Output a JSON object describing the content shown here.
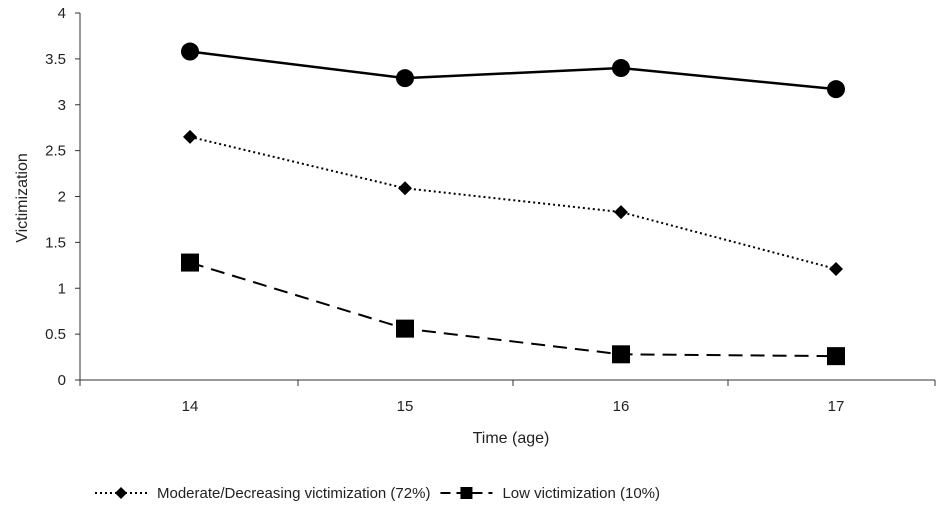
{
  "chart_data": {
    "type": "line",
    "title": "",
    "xlabel": "Time (age)",
    "ylabel": "Victimization",
    "categories": [
      "14",
      "15",
      "16",
      "17"
    ],
    "ylim": [
      0,
      4
    ],
    "yticks": [
      "0",
      "0.5",
      "1",
      "1.5",
      "2",
      "2.5",
      "3",
      "3.5",
      "4"
    ],
    "grid": false,
    "legend_position": "bottom-left",
    "series": [
      {
        "name": "",
        "style": "solid",
        "marker": "circle",
        "color": "#000000",
        "values": [
          3.58,
          3.29,
          3.4,
          3.17
        ]
      },
      {
        "name": "Moderate/Decreasing victimization (72%)",
        "style": "dotted",
        "marker": "diamond",
        "color": "#000000",
        "values": [
          2.65,
          2.09,
          1.83,
          1.21
        ]
      },
      {
        "name": "Low victimization (10%)",
        "style": "dashed",
        "marker": "square",
        "color": "#000000",
        "values": [
          1.28,
          0.56,
          0.28,
          0.26
        ]
      }
    ]
  }
}
